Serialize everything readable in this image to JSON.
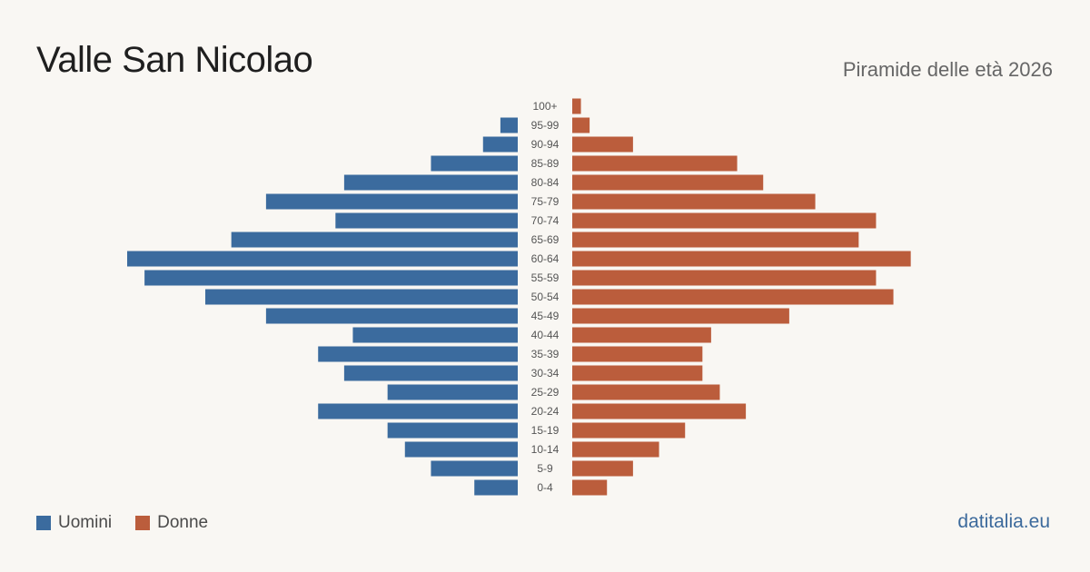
{
  "title": "Valle San Nicolao",
  "subtitle": "Piramide delle età 2026",
  "brand": "datitalia.eu",
  "colors": {
    "male": "#3b6b9e",
    "female": "#bb5d3c",
    "label": "#555555"
  },
  "chart_data": {
    "type": "bar",
    "orientation": "population-pyramid",
    "categories": [
      "100+",
      "95-99",
      "90-94",
      "85-89",
      "80-84",
      "75-79",
      "70-74",
      "65-69",
      "60-64",
      "55-59",
      "50-54",
      "45-49",
      "40-44",
      "35-39",
      "30-34",
      "25-29",
      "20-24",
      "15-19",
      "10-14",
      "5-9",
      "0-4"
    ],
    "series": [
      {
        "name": "Uomini",
        "color": "#3b6b9e",
        "values": [
          0,
          2,
          4,
          10,
          20,
          29,
          21,
          33,
          45,
          43,
          36,
          29,
          19,
          23,
          20,
          15,
          23,
          15,
          13,
          10,
          5
        ]
      },
      {
        "name": "Donne",
        "color": "#bb5d3c",
        "values": [
          1,
          2,
          7,
          19,
          22,
          28,
          35,
          33,
          39,
          35,
          37,
          25,
          16,
          15,
          15,
          17,
          20,
          13,
          10,
          7,
          4
        ]
      }
    ],
    "legend": "bottom-left",
    "grid": false
  }
}
